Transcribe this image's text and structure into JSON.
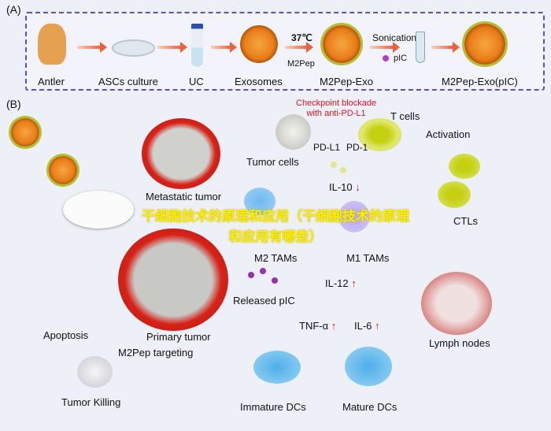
{
  "panel_a": {
    "label": "(A)",
    "steps": [
      "Antler",
      "ASCs culture",
      "UC",
      "Exosomes",
      "M2Pep-Exo",
      "M2Pep-Exo(pIC)"
    ],
    "temp": "37℃",
    "m2pep": "M2Pep",
    "sonication": "Sonication",
    "pic": "pIC"
  },
  "panel_b": {
    "label": "(B)",
    "checkpoint": [
      "Checkpoint blockade",
      "with anti-PD-L1"
    ],
    "t_cells": "T cells",
    "pd_l1": "PD-L1",
    "pd_1": "PD-1",
    "tumor_cells": "Tumor cells",
    "activation": "Activation",
    "metastatic_tumor": "Metastatic tumor",
    "il10": "IL-10",
    "m2_tams": "M2 TAMs",
    "m1_tams": "M1 TAMs",
    "ctls": "CTLs",
    "il12": "IL-12",
    "released_pic": "Released pIC",
    "tnf": "TNF-α",
    "il6": "IL-6",
    "primary_tumor": "Primary tumor",
    "apoptosis": "Apoptosis",
    "m2pep_targeting": "M2Pep targeting",
    "lymph_nodes": "Lymph nodes",
    "tumor_killing": "Tumor Killing",
    "immature_dcs": "Immature DCs",
    "mature_dcs": "Mature DCs"
  },
  "watermark": "干细胞技术的原理和应用（干细胞技术的原理和应用有哪些）",
  "colors": {
    "accent_dashed": "#5a4be0",
    "up_down_arrows": "#e0141e",
    "watermark": "#f6f000"
  }
}
